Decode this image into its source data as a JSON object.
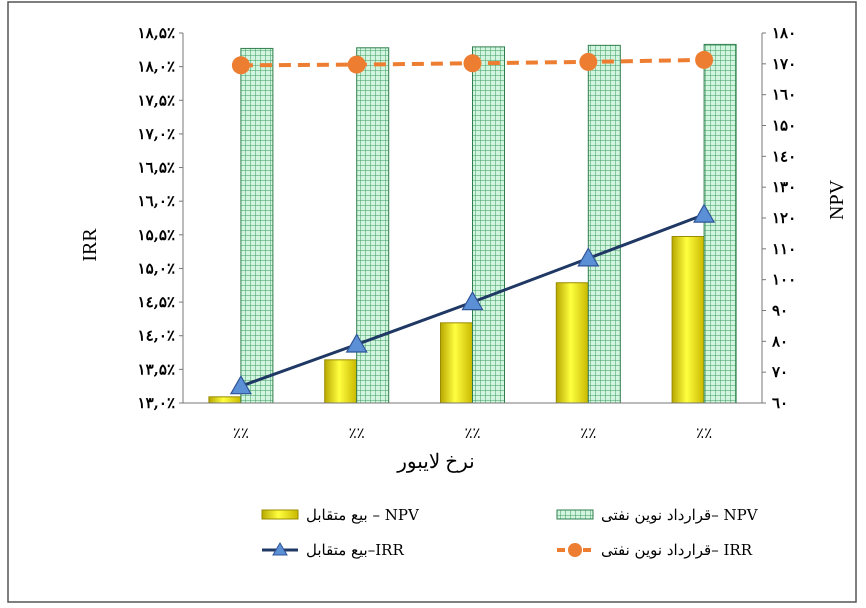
{
  "chart_data": {
    "type": "bar",
    "xlabel": "نرخ لایبور",
    "ylabel_left": "IRR",
    "ylabel_right": "NPV",
    "categories": [
      "٪٪",
      "٪٪",
      "٪٪",
      "٪٪",
      "٪٪"
    ],
    "left_axis": {
      "min": 13.0,
      "max": 18.5,
      "ticks": [
        "۱۳,۰٪",
        "۱۳,۵٪",
        "۱٤,۰٪",
        "۱٤,۵٪",
        "۱۵,۰٪",
        "۱۵,۵٪",
        "۱٦,۰٪",
        "۱٦,۵٪",
        "۱۷,۰٪",
        "۱۷,۵٪",
        "۱۸,۰٪",
        "۱۸,۵٪"
      ]
    },
    "right_axis": {
      "min": 60,
      "max": 180,
      "ticks": [
        "٦۰",
        "۷۰",
        "۸۰",
        "۹۰",
        "۱۰۰",
        "۱۱۰",
        "۱۲۰",
        "۱۳۰",
        "۱٤۰",
        "۱۵۰",
        "۱٦۰",
        "۱۷۰",
        "۱۸۰"
      ]
    },
    "series": [
      {
        "name": "NPV – بیع متقابل",
        "axis": "right",
        "kind": "bar",
        "color": "#ffff00",
        "values": [
          62,
          74,
          86,
          99,
          114
        ]
      },
      {
        "name": "NPV – قرارداد نوین نفتی",
        "axis": "right",
        "kind": "bar",
        "color": "#c8f0dc",
        "values": [
          175,
          175.2,
          175.5,
          176,
          176.3
        ]
      },
      {
        "name": "IRR– بیع متقابل",
        "axis": "left",
        "kind": "line",
        "color": "#1f3864",
        "values": [
          13.25,
          13.87,
          14.5,
          15.15,
          15.8
        ]
      },
      {
        "name": "IRR – قرارداد نوین نفتی",
        "axis": "left",
        "kind": "line",
        "color": "#ed7d31",
        "values": [
          18.02,
          18.03,
          18.05,
          18.07,
          18.1
        ]
      }
    ],
    "legend": [
      {
        "series": 0,
        "text": "بیع متقابل – NPV"
      },
      {
        "series": 1,
        "text": "قرارداد نوین نفتی– NPV"
      },
      {
        "series": 2,
        "text": "بیع متقابل–IRR"
      },
      {
        "series": 3,
        "text": "قرارداد نوین نفتی– IRR"
      }
    ],
    "legend_placement": "bottom",
    "grid": false
  }
}
